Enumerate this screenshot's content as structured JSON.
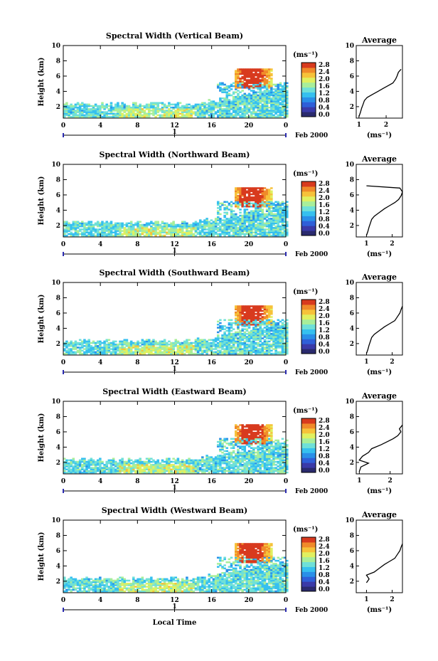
{
  "chart_data": [
    {
      "type": "heatmap",
      "title": "Spectral Width (Vertical Beam)",
      "ylabel": "Height (km)",
      "x_ticks": [
        "0",
        "4",
        "8",
        "12",
        "16",
        "20",
        "0"
      ],
      "y_ticks": [
        "2",
        "4",
        "6",
        "8",
        "10"
      ],
      "xlim": [
        0,
        24
      ],
      "ylim": [
        0.5,
        10
      ],
      "date_marker": "1",
      "date_label": "Feb 2000",
      "colorbar": {
        "unit": "(ms⁻¹)",
        "ticks": [
          "2.8",
          "2.4",
          "2.0",
          "1.6",
          "1.2",
          "0.8",
          "0.4",
          "0.0"
        ],
        "range": [
          0,
          2.8
        ]
      },
      "average": {
        "title": "Average",
        "xlabel": "(ms⁻¹)",
        "x_ticks": [
          "1",
          "2"
        ],
        "xlim": [
          0.9,
          2.6
        ],
        "ylim": [
          0.5,
          10
        ],
        "profile": [
          [
            1.0,
            0.7
          ],
          [
            1.05,
            1.2
          ],
          [
            1.1,
            1.8
          ],
          [
            1.15,
            2.3
          ],
          [
            1.2,
            2.8
          ],
          [
            1.3,
            3.2
          ],
          [
            1.5,
            3.6
          ],
          [
            1.7,
            4.0
          ],
          [
            1.9,
            4.4
          ],
          [
            2.1,
            4.8
          ],
          [
            2.25,
            5.1
          ],
          [
            2.35,
            5.6
          ],
          [
            2.4,
            6.0
          ],
          [
            2.45,
            6.5
          ],
          [
            2.55,
            6.9
          ]
        ]
      }
    },
    {
      "type": "heatmap",
      "title": "Spectral Width (Northward Beam)",
      "ylabel": "Height (km)",
      "x_ticks": [
        "0",
        "4",
        "8",
        "12",
        "16",
        "20",
        "0"
      ],
      "y_ticks": [
        "2",
        "4",
        "6",
        "8",
        "10"
      ],
      "xlim": [
        0,
        24
      ],
      "ylim": [
        0.5,
        10
      ],
      "date_marker": "1",
      "date_label": "Feb 2000",
      "colorbar": {
        "unit": "(ms⁻¹)",
        "ticks": [
          "2.8",
          "2.4",
          "2.0",
          "1.6",
          "1.2",
          "0.8",
          "0.4",
          "0.0"
        ],
        "range": [
          0,
          2.8
        ]
      },
      "average": {
        "title": "Average",
        "xlabel": "(ms⁻¹)",
        "x_ticks": [
          "1",
          "2"
        ],
        "xlim": [
          0.6,
          2.4
        ],
        "ylim": [
          0.5,
          10
        ],
        "profile": [
          [
            1.0,
            0.7
          ],
          [
            1.05,
            1.2
          ],
          [
            1.1,
            1.8
          ],
          [
            1.15,
            2.3
          ],
          [
            1.2,
            2.8
          ],
          [
            1.3,
            3.2
          ],
          [
            1.5,
            3.7
          ],
          [
            1.7,
            4.2
          ],
          [
            1.9,
            4.6
          ],
          [
            2.1,
            5.0
          ],
          [
            2.25,
            5.4
          ],
          [
            2.35,
            5.9
          ],
          [
            2.4,
            6.4
          ],
          [
            2.3,
            6.9
          ],
          [
            1.0,
            7.2
          ]
        ]
      }
    },
    {
      "type": "heatmap",
      "title": "Spectral Width (Southward Beam)",
      "ylabel": "Height (km)",
      "x_ticks": [
        "0",
        "4",
        "8",
        "12",
        "16",
        "20",
        "0"
      ],
      "y_ticks": [
        "2",
        "4",
        "6",
        "8",
        "10"
      ],
      "xlim": [
        0,
        24
      ],
      "ylim": [
        0.5,
        10
      ],
      "date_marker": "1",
      "date_label": "Feb 2000",
      "colorbar": {
        "unit": "(ms⁻¹)",
        "ticks": [
          "2.8",
          "2.4",
          "2.0",
          "1.6",
          "1.2",
          "0.8",
          "0.4",
          "0.0"
        ],
        "range": [
          0,
          2.8
        ]
      },
      "average": {
        "title": "Average",
        "xlabel": "(ms⁻¹)",
        "x_ticks": [
          "1",
          "2"
        ],
        "xlim": [
          0.6,
          2.4
        ],
        "ylim": [
          0.5,
          10
        ],
        "profile": [
          [
            1.0,
            0.7
          ],
          [
            1.05,
            1.2
          ],
          [
            1.1,
            1.8
          ],
          [
            1.15,
            2.3
          ],
          [
            1.2,
            2.8
          ],
          [
            1.3,
            3.2
          ],
          [
            1.5,
            3.7
          ],
          [
            1.7,
            4.2
          ],
          [
            1.9,
            4.6
          ],
          [
            2.1,
            5.0
          ],
          [
            2.2,
            5.5
          ],
          [
            2.3,
            6.0
          ],
          [
            2.35,
            6.5
          ],
          [
            2.4,
            6.9
          ]
        ]
      }
    },
    {
      "type": "heatmap",
      "title": "Spectral Width (Eastward Beam)",
      "ylabel": "Height (km)",
      "x_ticks": [
        "0",
        "4",
        "8",
        "12",
        "16",
        "20",
        "0"
      ],
      "y_ticks": [
        "2",
        "4",
        "6",
        "8",
        "10"
      ],
      "xlim": [
        0,
        24
      ],
      "ylim": [
        0.5,
        10
      ],
      "date_marker": "1",
      "date_label": "Feb 2000",
      "colorbar": {
        "unit": "(ms⁻¹)",
        "ticks": [
          "2.8",
          "2.4",
          "2.0",
          "1.6",
          "1.2",
          "0.8",
          "0.4",
          "0.0"
        ],
        "range": [
          0,
          2.8
        ]
      },
      "average": {
        "title": "Average",
        "xlabel": "(ms⁻¹)",
        "x_ticks": [
          "1",
          "2"
        ],
        "xlim": [
          0.9,
          2.4
        ],
        "ylim": [
          0.5,
          10
        ],
        "profile": [
          [
            1.0,
            0.8
          ],
          [
            1.05,
            1.4
          ],
          [
            1.3,
            1.9
          ],
          [
            1.0,
            2.3
          ],
          [
            1.1,
            2.8
          ],
          [
            1.3,
            3.3
          ],
          [
            1.4,
            3.8
          ],
          [
            1.7,
            4.3
          ],
          [
            1.9,
            4.7
          ],
          [
            2.1,
            5.1
          ],
          [
            2.25,
            5.5
          ],
          [
            2.35,
            6.0
          ],
          [
            2.3,
            6.4
          ],
          [
            2.4,
            6.9
          ]
        ]
      }
    },
    {
      "type": "heatmap",
      "title": "Spectral Width (Westward Beam)",
      "ylabel": "Height (km)",
      "x_ticks": [
        "0",
        "4",
        "8",
        "12",
        "16",
        "20",
        "0"
      ],
      "y_ticks": [
        "2",
        "4",
        "6",
        "8",
        "10"
      ],
      "xlim": [
        0,
        24
      ],
      "ylim": [
        0.5,
        10
      ],
      "date_marker": "1",
      "date_label": "Feb 2000",
      "colorbar": {
        "unit": "(ms⁻¹)",
        "ticks": [
          "2.8",
          "2.4",
          "2.0",
          "1.6",
          "1.2",
          "0.8",
          "0.4",
          "0.0"
        ],
        "range": [
          0,
          2.8
        ]
      },
      "average": {
        "title": "Average",
        "xlabel": "(ms⁻¹)",
        "x_ticks": [
          "1",
          "2"
        ],
        "xlim": [
          0.6,
          2.4
        ],
        "ylim": [
          0.5,
          10
        ],
        "profile": [
          [
            1.0,
            1.8
          ],
          [
            1.1,
            2.3
          ],
          [
            1.0,
            2.8
          ],
          [
            1.3,
            3.2
          ],
          [
            1.5,
            3.7
          ],
          [
            1.7,
            4.2
          ],
          [
            1.9,
            4.6
          ],
          [
            2.1,
            5.0
          ],
          [
            2.2,
            5.5
          ],
          [
            2.3,
            6.0
          ],
          [
            2.35,
            6.5
          ],
          [
            2.4,
            6.9
          ]
        ]
      }
    }
  ],
  "xlabel_bottom": "Local Time",
  "colormap": [
    "#2a2a6e",
    "#3a3aa8",
    "#2f5fd8",
    "#2a8fe8",
    "#36c0ef",
    "#6fe0d8",
    "#a8ee9a",
    "#e0f060",
    "#f6c23a",
    "#f08a2a",
    "#d83a1e"
  ]
}
